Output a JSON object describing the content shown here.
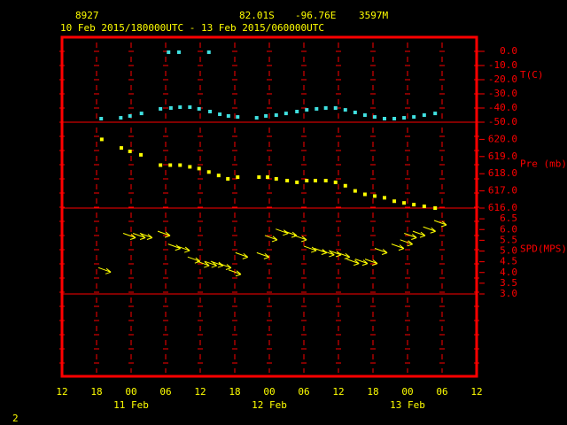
{
  "header": {
    "station": "8927",
    "lat": "82.01S",
    "lon": "-96.76E",
    "elev": "3597M",
    "period": "10 Feb 2015/180000UTC - 13 Feb 2015/060000UTC"
  },
  "page_number": "2",
  "x_axis": {
    "xlim": [
      0,
      72
    ],
    "xticks": [
      {
        "value": 0,
        "label": "12"
      },
      {
        "value": 6,
        "label": "18"
      },
      {
        "value": 12,
        "label": "00"
      },
      {
        "value": 18,
        "label": "06"
      },
      {
        "value": 24,
        "label": "12"
      },
      {
        "value": 30,
        "label": "18"
      },
      {
        "value": 36,
        "label": "00"
      },
      {
        "value": 42,
        "label": "06"
      },
      {
        "value": 48,
        "label": "12"
      },
      {
        "value": 54,
        "label": "18"
      },
      {
        "value": 60,
        "label": "00"
      },
      {
        "value": 66,
        "label": "06"
      },
      {
        "value": 72,
        "label": "12"
      }
    ],
    "day_labels": [
      {
        "value": 12,
        "label": "11 Feb"
      },
      {
        "value": 36,
        "label": "12 Feb"
      },
      {
        "value": 60,
        "label": "13 Feb"
      }
    ]
  },
  "chart_data": [
    {
      "type": "scatter",
      "y_label": "T(C)",
      "color": "#40e0e0",
      "x": [
        6.8,
        10.2,
        11.8,
        13.8,
        17.1,
        18.5,
        18.9,
        20.3,
        20.5,
        22.2,
        23.8,
        25.5,
        25.7,
        27.4,
        28.9,
        30.5,
        33.8,
        35.4,
        37.2,
        38.9,
        40.8,
        42.5,
        44.2,
        45.8,
        47.5,
        49.2,
        50.9,
        52.6,
        54.3,
        56.0,
        57.7,
        59.4,
        61.1,
        62.9,
        64.8
      ],
      "values": [
        -47.5,
        -46.9,
        -45.6,
        -43.8,
        -40.6,
        -0.6,
        -40.0,
        -0.6,
        -39.4,
        -39.4,
        -40.6,
        -0.6,
        -42.5,
        -44.4,
        -45.6,
        -46.3,
        -46.9,
        -45.6,
        -45.0,
        -43.8,
        -42.5,
        -41.3,
        -40.6,
        -40.0,
        -40.0,
        -41.3,
        -43.1,
        -45.0,
        -46.3,
        -47.5,
        -47.5,
        -46.9,
        -46.3,
        -45.0,
        -43.8
      ],
      "ylim": [
        -50,
        10
      ],
      "yticks": [
        {
          "value": 0,
          "label": "0.0"
        },
        {
          "value": -10,
          "label": "-10.0"
        },
        {
          "value": -20,
          "label": "-20.0"
        },
        {
          "value": -30,
          "label": "-30.0"
        },
        {
          "value": -40,
          "label": "-40.0"
        },
        {
          "value": -50,
          "label": "-50.0"
        }
      ]
    },
    {
      "type": "scatter",
      "y_label": "Pre (mb)",
      "color": "#ffff00",
      "x": [
        6.9,
        10.3,
        11.8,
        13.7,
        17.1,
        18.8,
        20.5,
        22.2,
        23.8,
        25.5,
        27.2,
        28.8,
        30.5,
        34.2,
        35.7,
        37.2,
        39.1,
        40.8,
        42.5,
        44.0,
        45.8,
        47.5,
        49.2,
        50.9,
        52.6,
        54.3,
        56.0,
        57.7,
        59.4,
        61.1,
        62.9,
        64.8
      ],
      "values": [
        620.0,
        619.5,
        619.3,
        619.1,
        618.5,
        618.5,
        618.5,
        618.4,
        618.3,
        618.1,
        617.9,
        617.7,
        617.8,
        617.8,
        617.8,
        617.7,
        617.6,
        617.5,
        617.6,
        617.6,
        617.6,
        617.5,
        617.3,
        617.0,
        616.8,
        616.7,
        616.6,
        616.4,
        616.3,
        616.2,
        616.1,
        616.0
      ],
      "ylim": [
        616,
        621
      ],
      "yticks": [
        {
          "value": 620,
          "label": "620.0"
        },
        {
          "value": 619,
          "label": "619.0"
        },
        {
          "value": 618,
          "label": "618.0"
        },
        {
          "value": 617,
          "label": "617.0"
        },
        {
          "value": 616,
          "label": "616.0"
        }
      ]
    },
    {
      "type": "arrows",
      "y_label": "SPD(MPS)",
      "color": "#ffff00",
      "x": [
        7.4,
        11.7,
        13.4,
        14.6,
        17.7,
        19.5,
        21.1,
        22.9,
        24.5,
        25.8,
        26.9,
        28.3,
        30.0,
        31.2,
        34.9,
        36.3,
        38.2,
        39.7,
        41.4,
        43.1,
        44.9,
        46.2,
        47.4,
        48.9,
        50.5,
        52.0,
        53.7,
        55.4,
        58.3,
        59.8,
        60.5,
        62.0,
        63.8,
        65.7
      ],
      "values": [
        4.1,
        5.7,
        5.7,
        5.7,
        5.8,
        5.2,
        5.1,
        4.6,
        4.4,
        4.4,
        4.4,
        4.3,
        4.0,
        4.8,
        4.8,
        5.6,
        5.9,
        5.8,
        5.6,
        5.1,
        5.0,
        4.9,
        4.9,
        4.8,
        4.5,
        4.5,
        4.5,
        5.0,
        5.2,
        5.4,
        5.7,
        5.8,
        6.0,
        6.3
      ],
      "ylim": [
        3,
        7
      ],
      "yticks": [
        {
          "value": 6.5,
          "label": "6.5"
        },
        {
          "value": 6,
          "label": "6.0"
        },
        {
          "value": 5.5,
          "label": "5.5"
        },
        {
          "value": 5,
          "label": "5.0"
        },
        {
          "value": 4.5,
          "label": "4.5"
        },
        {
          "value": 4,
          "label": "4.0"
        },
        {
          "value": 3.5,
          "label": "3.5"
        },
        {
          "value": 3,
          "label": "3.0"
        }
      ]
    }
  ]
}
